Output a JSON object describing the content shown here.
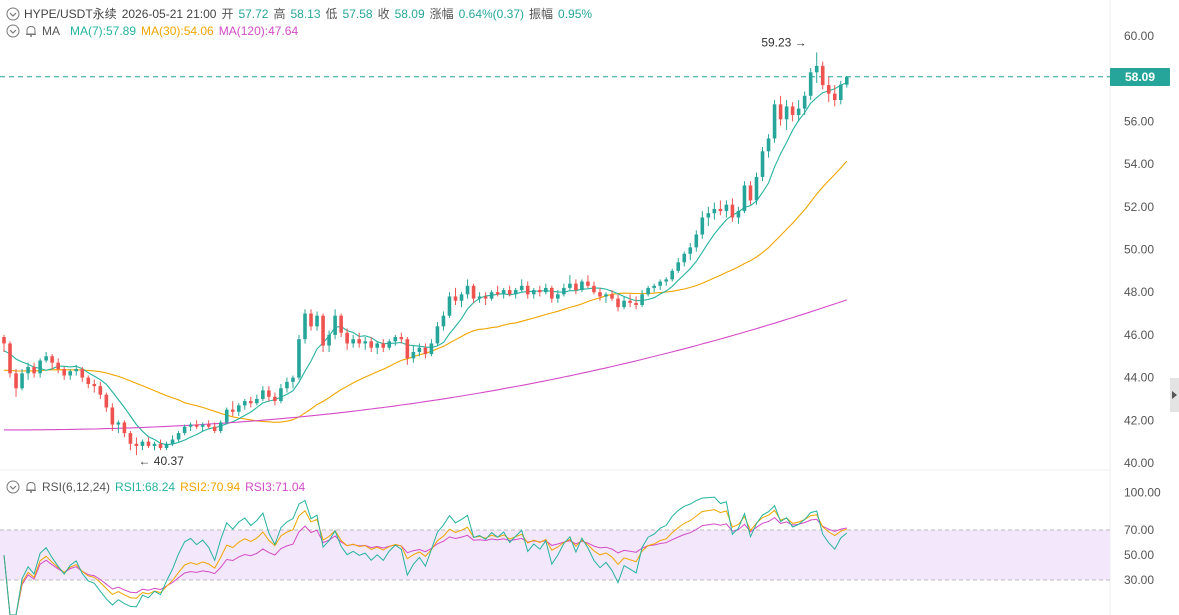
{
  "header": {
    "symbol": "HYPE/USDT永续",
    "datetime": "2026-05-21 21:00",
    "open_label": "开",
    "open": "57.72",
    "high_label": "高",
    "high": "58.13",
    "low_label": "低",
    "low": "57.58",
    "close_label": "收",
    "close": "58.09",
    "change_label": "涨幅",
    "change": "0.64%(0.37)",
    "amplitude_label": "振幅",
    "amplitude": "0.95%"
  },
  "ma_legend": {
    "title": "MA",
    "ma7": "MA(7):57.89",
    "ma30": "MA(30):54.06",
    "ma120": "MA(120):47.64"
  },
  "rsi_legend": {
    "title": "RSI(6,12,24)",
    "rsi1": "RSI1:68.24",
    "rsi2": "RSI2:70.94",
    "rsi3": "RSI3:71.04"
  },
  "price_tag": "58.09",
  "high_marker": "59.23",
  "low_marker": "40.37",
  "colors": {
    "up": "#26a69a",
    "down": "#ef5350",
    "ma7": "#26b3a0",
    "ma30": "#f0a500",
    "ma120": "#d44bc8",
    "rsi1": "#26b3a0",
    "rsi2": "#f0a500",
    "rsi3": "#d44bc8",
    "rsi_band": "#f3e8fb"
  },
  "chart_data": [
    {
      "type": "candlestick",
      "y_ticks": [
        "60.00",
        "58.00",
        "56.00",
        "54.00",
        "52.00",
        "50.00",
        "48.00",
        "46.00",
        "44.00",
        "42.00",
        "40.00"
      ],
      "ylim": [
        40,
        60
      ],
      "last_price": 58.09,
      "ohlc": [
        [
          45.9,
          46.0,
          45.2,
          45.6
        ],
        [
          45.6,
          45.7,
          44.0,
          44.2
        ],
        [
          44.2,
          44.4,
          43.1,
          43.5
        ],
        [
          43.5,
          44.4,
          43.4,
          44.2
        ],
        [
          44.2,
          44.7,
          43.9,
          44.5
        ],
        [
          44.5,
          44.7,
          44.0,
          44.2
        ],
        [
          44.2,
          44.9,
          44.0,
          44.8
        ],
        [
          44.8,
          45.2,
          44.7,
          45.0
        ],
        [
          45.0,
          45.1,
          44.4,
          44.7
        ],
        [
          44.7,
          44.9,
          44.2,
          44.4
        ],
        [
          44.4,
          44.5,
          43.9,
          44.1
        ],
        [
          44.1,
          44.4,
          43.9,
          44.3
        ],
        [
          44.3,
          44.6,
          44.1,
          44.4
        ],
        [
          44.4,
          44.5,
          43.8,
          44.0
        ],
        [
          44.0,
          44.1,
          43.5,
          43.7
        ],
        [
          43.7,
          43.9,
          43.3,
          43.6
        ],
        [
          43.6,
          43.8,
          43.0,
          43.2
        ],
        [
          43.2,
          43.3,
          42.4,
          42.6
        ],
        [
          42.6,
          42.8,
          41.5,
          41.8
        ],
        [
          41.8,
          42.0,
          41.4,
          41.9
        ],
        [
          41.9,
          42.0,
          41.2,
          41.4
        ],
        [
          41.4,
          41.5,
          40.6,
          40.9
        ],
        [
          40.9,
          41.2,
          40.37,
          40.8
        ],
        [
          40.8,
          41.1,
          40.6,
          41.0
        ],
        [
          41.0,
          41.2,
          40.7,
          40.8
        ],
        [
          40.8,
          41.0,
          40.6,
          40.9
        ],
        [
          40.9,
          41.1,
          40.6,
          40.7
        ],
        [
          40.7,
          41.0,
          40.6,
          40.9
        ],
        [
          40.9,
          41.3,
          40.8,
          41.1
        ],
        [
          41.1,
          41.5,
          41.0,
          41.4
        ],
        [
          41.4,
          41.8,
          41.3,
          41.7
        ],
        [
          41.7,
          41.9,
          41.5,
          41.8
        ],
        [
          41.8,
          42.0,
          41.6,
          41.7
        ],
        [
          41.7,
          41.9,
          41.5,
          41.8
        ],
        [
          41.8,
          42.0,
          41.6,
          41.7
        ],
        [
          41.7,
          41.9,
          41.4,
          41.5
        ],
        [
          41.5,
          42.0,
          41.4,
          41.9
        ],
        [
          41.9,
          42.6,
          41.8,
          42.5
        ],
        [
          42.5,
          42.9,
          42.2,
          42.4
        ],
        [
          42.4,
          42.8,
          42.2,
          42.7
        ],
        [
          42.7,
          43.0,
          42.5,
          42.9
        ],
        [
          42.9,
          43.1,
          42.6,
          42.8
        ],
        [
          42.8,
          43.2,
          42.7,
          43.0
        ],
        [
          43.0,
          43.6,
          42.9,
          43.4
        ],
        [
          43.4,
          43.6,
          42.9,
          43.1
        ],
        [
          43.1,
          43.3,
          42.7,
          42.9
        ],
        [
          42.9,
          43.7,
          42.8,
          43.5
        ],
        [
          43.5,
          44.0,
          43.3,
          43.8
        ],
        [
          43.8,
          44.1,
          43.5,
          44.0
        ],
        [
          44.0,
          46.0,
          43.9,
          45.8
        ],
        [
          45.8,
          47.2,
          45.6,
          47.0
        ],
        [
          47.0,
          47.2,
          46.2,
          46.4
        ],
        [
          46.4,
          47.1,
          46.2,
          46.9
        ],
        [
          46.9,
          47.0,
          45.2,
          45.5
        ],
        [
          45.5,
          46.2,
          45.2,
          46.0
        ],
        [
          46.0,
          47.2,
          45.8,
          46.9
        ],
        [
          46.9,
          47.0,
          45.9,
          46.1
        ],
        [
          46.1,
          46.3,
          45.3,
          45.6
        ],
        [
          45.6,
          46.0,
          45.4,
          45.8
        ],
        [
          45.8,
          46.1,
          45.4,
          45.6
        ],
        [
          45.6,
          45.9,
          45.3,
          45.7
        ],
        [
          45.7,
          45.9,
          45.2,
          45.4
        ],
        [
          45.4,
          45.7,
          45.1,
          45.6
        ],
        [
          45.6,
          45.8,
          45.2,
          45.4
        ],
        [
          45.4,
          45.8,
          45.3,
          45.7
        ],
        [
          45.7,
          46.0,
          45.5,
          45.9
        ],
        [
          45.9,
          46.1,
          45.6,
          45.8
        ],
        [
          45.8,
          45.9,
          44.6,
          44.9
        ],
        [
          44.9,
          45.5,
          44.7,
          45.2
        ],
        [
          45.2,
          45.6,
          45.0,
          45.4
        ],
        [
          45.4,
          45.6,
          44.9,
          45.1
        ],
        [
          45.1,
          45.8,
          45.0,
          45.6
        ],
        [
          45.6,
          46.6,
          45.5,
          46.4
        ],
        [
          46.4,
          47.1,
          46.2,
          46.9
        ],
        [
          46.9,
          48.0,
          46.8,
          47.8
        ],
        [
          47.8,
          48.2,
          47.4,
          47.6
        ],
        [
          47.6,
          48.0,
          47.3,
          47.9
        ],
        [
          47.9,
          48.6,
          47.7,
          48.3
        ],
        [
          48.3,
          48.4,
          47.5,
          47.7
        ],
        [
          47.7,
          48.0,
          47.5,
          47.8
        ],
        [
          47.8,
          48.0,
          47.4,
          47.7
        ],
        [
          47.7,
          48.1,
          47.6,
          48.0
        ],
        [
          48.0,
          48.3,
          47.8,
          47.9
        ],
        [
          47.9,
          48.2,
          47.7,
          48.1
        ],
        [
          48.1,
          48.3,
          47.8,
          47.9
        ],
        [
          47.9,
          48.2,
          47.7,
          48.1
        ],
        [
          48.1,
          48.6,
          48.0,
          48.3
        ],
        [
          48.3,
          48.5,
          47.7,
          47.9
        ],
        [
          47.9,
          48.2,
          47.7,
          48.1
        ],
        [
          48.1,
          48.3,
          47.8,
          48.0
        ],
        [
          48.0,
          48.4,
          47.9,
          48.2
        ],
        [
          48.2,
          48.3,
          47.5,
          47.7
        ],
        [
          47.7,
          48.1,
          47.5,
          47.9
        ],
        [
          47.9,
          48.4,
          47.8,
          48.2
        ],
        [
          48.2,
          48.8,
          48.1,
          48.4
        ],
        [
          48.4,
          48.6,
          47.9,
          48.1
        ],
        [
          48.1,
          48.6,
          48.0,
          48.5
        ],
        [
          48.5,
          48.8,
          48.2,
          48.3
        ],
        [
          48.3,
          48.5,
          47.9,
          48.0
        ],
        [
          48.0,
          48.2,
          47.6,
          47.8
        ],
        [
          47.8,
          48.0,
          47.5,
          47.9
        ],
        [
          47.9,
          48.1,
          47.6,
          47.7
        ],
        [
          47.7,
          47.9,
          47.1,
          47.3
        ],
        [
          47.3,
          47.8,
          47.2,
          47.6
        ],
        [
          47.6,
          47.9,
          47.3,
          47.5
        ],
        [
          47.5,
          47.8,
          47.2,
          47.4
        ],
        [
          47.4,
          48.1,
          47.3,
          47.9
        ],
        [
          47.9,
          48.3,
          47.8,
          48.2
        ],
        [
          48.2,
          48.4,
          48.0,
          48.3
        ],
        [
          48.3,
          48.6,
          48.1,
          48.5
        ],
        [
          48.5,
          48.7,
          48.3,
          48.6
        ],
        [
          48.6,
          49.1,
          48.5,
          49.0
        ],
        [
          49.0,
          49.6,
          48.9,
          49.4
        ],
        [
          49.4,
          49.9,
          49.2,
          49.8
        ],
        [
          49.8,
          50.3,
          49.5,
          50.1
        ],
        [
          50.1,
          50.9,
          49.9,
          50.7
        ],
        [
          50.7,
          51.8,
          50.5,
          51.5
        ],
        [
          51.5,
          52.0,
          51.1,
          51.7
        ],
        [
          51.7,
          52.2,
          51.4,
          51.9
        ],
        [
          51.9,
          52.3,
          51.6,
          51.8
        ],
        [
          51.8,
          52.3,
          51.5,
          52.1
        ],
        [
          52.1,
          52.4,
          51.3,
          51.5
        ],
        [
          51.5,
          52.0,
          51.2,
          51.8
        ],
        [
          51.8,
          53.2,
          51.7,
          53.0
        ],
        [
          53.0,
          53.2,
          52.1,
          52.3
        ],
        [
          52.3,
          53.6,
          52.1,
          53.4
        ],
        [
          53.4,
          54.8,
          53.2,
          54.6
        ],
        [
          54.6,
          55.4,
          54.3,
          55.2
        ],
        [
          55.2,
          57.0,
          55.0,
          56.8
        ],
        [
          56.8,
          57.2,
          55.8,
          56.1
        ],
        [
          56.1,
          57.0,
          55.6,
          56.7
        ],
        [
          56.7,
          56.9,
          56.0,
          56.3
        ],
        [
          56.3,
          57.0,
          56.0,
          56.6
        ],
        [
          56.6,
          57.4,
          56.3,
          57.2
        ],
        [
          57.2,
          58.5,
          57.0,
          58.3
        ],
        [
          58.3,
          59.23,
          57.8,
          58.6
        ],
        [
          58.6,
          58.8,
          57.5,
          57.7
        ],
        [
          57.7,
          58.1,
          56.9,
          57.3
        ],
        [
          57.3,
          57.7,
          56.7,
          57.0
        ],
        [
          57.0,
          57.9,
          56.8,
          57.72
        ],
        [
          57.72,
          58.13,
          57.58,
          58.09
        ]
      ]
    },
    {
      "type": "line",
      "title": "RSI(6,12,24)",
      "y_ticks": [
        "100.00",
        "70.00",
        "50.00",
        "30.00"
      ],
      "ylim": [
        0,
        100
      ],
      "band": [
        30,
        70
      ]
    }
  ]
}
